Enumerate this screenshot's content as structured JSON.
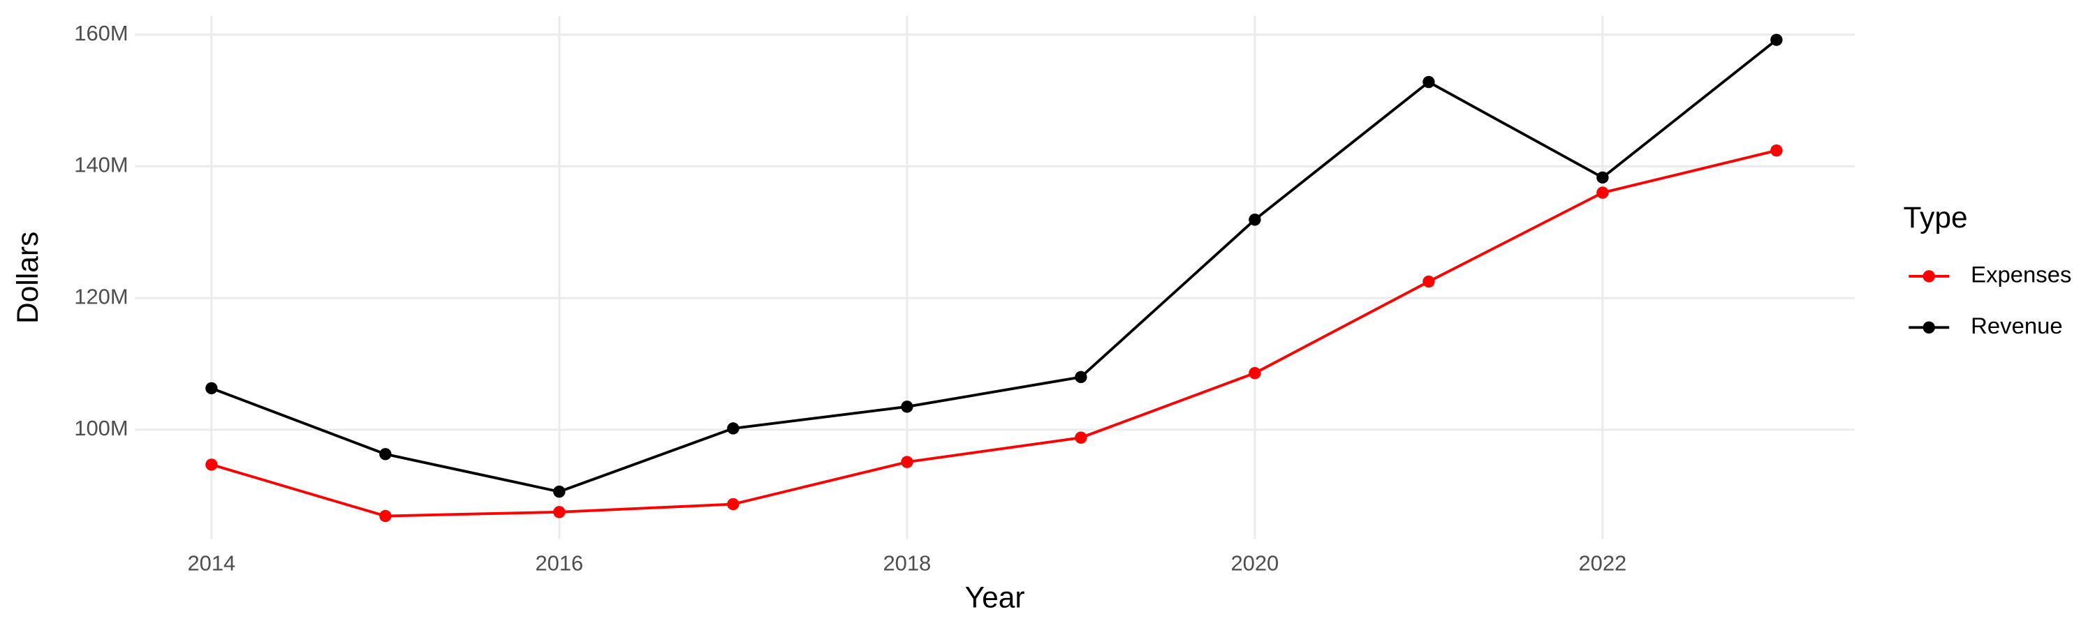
{
  "chart_data": {
    "type": "line",
    "x_label": "Year",
    "y_label": "Dollars",
    "legend_title": "Type",
    "legend": "right",
    "grid": true,
    "x": [
      2014,
      2015,
      2016,
      2017,
      2018,
      2019,
      2020,
      2021,
      2022,
      2023
    ],
    "series": [
      {
        "name": "Expenses",
        "color": "#ff0000",
        "values": [
          94700000,
          86900000,
          87500000,
          88700000,
          95100000,
          98800000,
          108600000,
          122500000,
          136000000,
          142400000
        ]
      },
      {
        "name": "Revenue",
        "color": "#000000",
        "values": [
          106300000,
          96300000,
          90600000,
          100200000,
          103500000,
          108000000,
          131900000,
          152800000,
          138300000,
          159200000
        ]
      }
    ],
    "xlim": [
      2013.56,
      2023.45
    ],
    "xticks": [
      2014,
      2016,
      2018,
      2020,
      2022
    ],
    "ylim": [
      83400000,
      162800000
    ],
    "yticks": [
      {
        "value": 100000000,
        "label": "100M"
      },
      {
        "value": 120000000,
        "label": "120M"
      },
      {
        "value": 140000000,
        "label": "140M"
      },
      {
        "value": 160000000,
        "label": "160M"
      }
    ]
  }
}
